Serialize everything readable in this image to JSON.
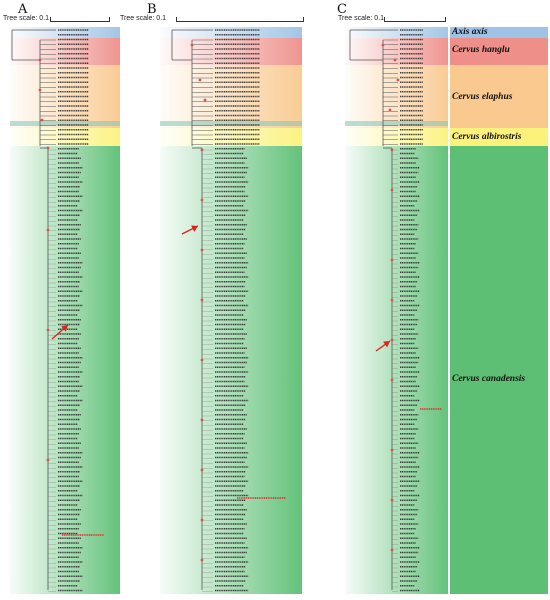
{
  "panels": [
    {
      "label": "A",
      "scale_text": "Tree scale: 0.1"
    },
    {
      "label": "B",
      "scale_text": "Tree scale: 0.1"
    },
    {
      "label": "C",
      "scale_text": "Tree scale: 0.1"
    }
  ],
  "species": [
    {
      "name": "Axis axis",
      "color": "#9ec3e6"
    },
    {
      "name": "Cervus hanglu",
      "color": "#ee8f8a"
    },
    {
      "name": "Cervus elaphus",
      "color": "#f9c98f"
    },
    {
      "name": "Cervus albirostris",
      "color": "#fbf27c"
    },
    {
      "name": "Cervus canadensis",
      "color": "#5cbf74"
    }
  ],
  "colors": {
    "branch": "#555555",
    "node_marker": "#d9534f",
    "arrow": "#e0201b",
    "highlight_label": "#e0302b",
    "teal_band": "#7ec6b7"
  },
  "arrow_icon": "red-arrow-icon"
}
